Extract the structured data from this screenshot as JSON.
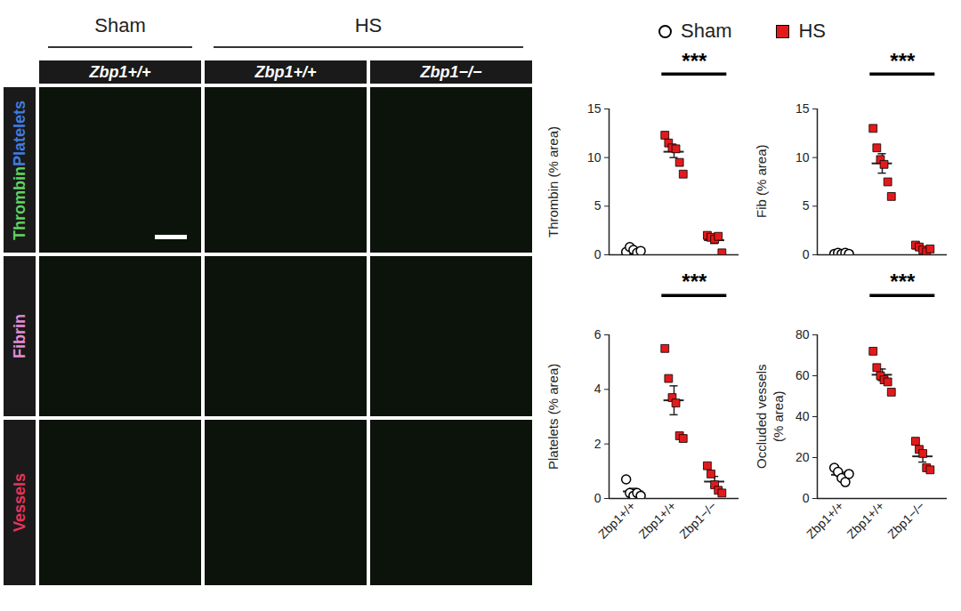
{
  "image_panel": {
    "groups": [
      "Sham",
      "HS"
    ],
    "columns": [
      "Zbp1+/+",
      "Zbp1+/+",
      "Zbp1−/−"
    ],
    "rows": [
      {
        "labels": [
          {
            "text": "Thrombin",
            "color": "#5fd35f"
          },
          {
            "text": "Platelets",
            "color": "#3f7de0"
          }
        ]
      },
      {
        "labels": [
          {
            "text": "Fibrin",
            "color": "#e58ad6"
          }
        ]
      },
      {
        "labels": [
          {
            "text": "Vessels",
            "color": "#e8335a"
          }
        ]
      }
    ]
  },
  "chart_data": [
    {
      "type": "scatter",
      "ylabel": "Thrombin (% area)",
      "legend": "top",
      "tick_labels": "y",
      "categories": [
        "Zbp1+/+",
        "Zbp1+/+",
        "Zbp1−/−"
      ],
      "series": [
        {
          "name": "Sham",
          "color": "#000000",
          "marker": "circle",
          "values": [
            [
              0.3,
              0.8,
              0.5,
              0.2,
              0.4
            ],
            null,
            null
          ]
        },
        {
          "name": "HS",
          "color": "#e31a1c",
          "marker": "square",
          "values": [
            null,
            [
              12.3,
              11.5,
              11,
              10.9,
              9.5,
              8.3
            ],
            [
              2,
              1.8,
              1.6,
              1.9,
              0.2
            ]
          ]
        }
      ],
      "means": [
        0.44,
        10.6,
        1.5
      ],
      "sems": [
        0.1,
        0.6,
        0.33
      ],
      "significance": {
        "from": 1,
        "to": 2,
        "label": "***"
      },
      "ylim": [
        0,
        15
      ],
      "yticks": [
        0,
        5,
        10,
        15
      ]
    },
    {
      "type": "scatter",
      "ylabel": "Fib (% area)",
      "tick_labels": "y",
      "categories": [
        "Zbp1+/+",
        "Zbp1+/+",
        "Zbp1−/−"
      ],
      "series": [
        {
          "name": "Sham",
          "color": "#000000",
          "marker": "circle",
          "values": [
            [
              0.1,
              0.2,
              0.1,
              0.2,
              0.1
            ],
            null,
            null
          ]
        },
        {
          "name": "HS",
          "color": "#e31a1c",
          "marker": "square",
          "values": [
            null,
            [
              13,
              11,
              9.8,
              9.3,
              7.5,
              6
            ],
            [
              1,
              0.8,
              0.5,
              0.3,
              0.6
            ]
          ]
        }
      ],
      "means": [
        0.14,
        9.4,
        0.64
      ],
      "sems": [
        0.02,
        1,
        0.12
      ],
      "significance": {
        "from": 1,
        "to": 2,
        "label": "***"
      },
      "ylim": [
        0,
        15
      ],
      "yticks": [
        0,
        5,
        10,
        15
      ]
    },
    {
      "type": "scatter",
      "ylabel": "Platelets (% area)",
      "categories": [
        "Zbp1+/+",
        "Zbp1+/+",
        "Zbp1−/−"
      ],
      "series": [
        {
          "name": "Sham",
          "color": "#000000",
          "marker": "circle",
          "values": [
            [
              0.7,
              0.2,
              0.1,
              0.2,
              0.1
            ],
            null,
            null
          ]
        },
        {
          "name": "HS",
          "color": "#e31a1c",
          "marker": "square",
          "values": [
            null,
            [
              5.5,
              4.4,
              3.7,
              3.5,
              2.3,
              2.2
            ],
            [
              1.2,
              0.9,
              0.5,
              0.3,
              0.2
            ]
          ]
        }
      ],
      "means": [
        0.26,
        3.6,
        0.62
      ],
      "sems": [
        0.11,
        0.53,
        0.19
      ],
      "significance": {
        "from": 1,
        "to": 2,
        "label": "***"
      },
      "ylim": [
        0,
        6
      ],
      "yticks": [
        0,
        2,
        4,
        6
      ]
    },
    {
      "type": "scatter",
      "ylabel": "Occluded vessels (% area)",
      "categories": [
        "Zbp1+/+",
        "Zbp1+/+",
        "Zbp1−/−"
      ],
      "series": [
        {
          "name": "Sham",
          "color": "#000000",
          "marker": "circle",
          "values": [
            [
              15,
              13,
              10,
              8,
              12
            ],
            null,
            null
          ]
        },
        {
          "name": "HS",
          "color": "#e31a1c",
          "marker": "square",
          "values": [
            null,
            [
              72,
              64,
              60,
              58,
              57,
              52
            ],
            [
              28,
              24,
              22,
              15,
              14
            ]
          ]
        }
      ],
      "means": [
        11.6,
        60.5,
        20.6
      ],
      "sems": [
        1.2,
        2.8,
        2.8
      ],
      "significance": {
        "from": 1,
        "to": 2,
        "label": "***"
      },
      "ylim": [
        0,
        80
      ],
      "yticks": [
        0,
        20,
        40,
        60,
        80
      ]
    }
  ]
}
